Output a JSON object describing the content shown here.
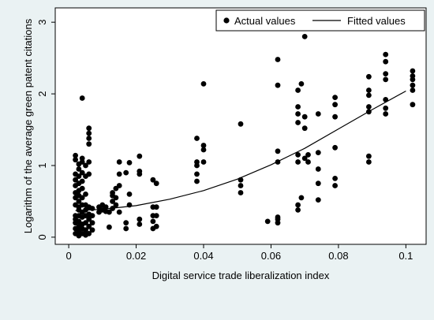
{
  "chart_data": {
    "type": "scatter",
    "title": "",
    "xlabel": "Digital service trade liberalization index",
    "ylabel": "Logarithm of the average green patent citations",
    "xlim": [
      -0.004,
      0.106
    ],
    "ylim": [
      -0.1,
      3.2
    ],
    "xticks": [
      "0",
      "0.02",
      "0.04",
      "0.06",
      "0.08",
      "0.1"
    ],
    "xtick_values": [
      0,
      0.02,
      0.04,
      0.06,
      0.08,
      0.1
    ],
    "yticks": [
      "0",
      "1",
      "2",
      "3"
    ],
    "ytick_values": [
      0,
      1,
      2,
      3
    ],
    "grid": false,
    "legend_position": "top-right",
    "series": [
      {
        "name": "Actual values",
        "kind": "scatter",
        "color": "#000000",
        "points": [
          [
            0.002,
            0.05
          ],
          [
            0.002,
            0.12
          ],
          [
            0.002,
            0.2
          ],
          [
            0.002,
            0.25
          ],
          [
            0.002,
            0.3
          ],
          [
            0.002,
            0.45
          ],
          [
            0.002,
            0.55
          ],
          [
            0.002,
            0.62
          ],
          [
            0.002,
            0.72
          ],
          [
            0.002,
            0.8
          ],
          [
            0.002,
            0.88
          ],
          [
            0.002,
            1.08
          ],
          [
            0.002,
            1.14
          ],
          [
            0.003,
            0.02
          ],
          [
            0.003,
            0.08
          ],
          [
            0.003,
            0.15
          ],
          [
            0.003,
            0.22
          ],
          [
            0.003,
            0.3
          ],
          [
            0.003,
            0.38
          ],
          [
            0.003,
            0.42
          ],
          [
            0.003,
            0.5
          ],
          [
            0.003,
            0.58
          ],
          [
            0.003,
            0.65
          ],
          [
            0.003,
            0.75
          ],
          [
            0.003,
            0.85
          ],
          [
            0.003,
            0.95
          ],
          [
            0.003,
            1.02
          ],
          [
            0.004,
            0.05
          ],
          [
            0.004,
            0.12
          ],
          [
            0.004,
            0.18
          ],
          [
            0.004,
            0.28
          ],
          [
            0.004,
            0.35
          ],
          [
            0.004,
            0.45
          ],
          [
            0.004,
            0.55
          ],
          [
            0.004,
            0.68
          ],
          [
            0.004,
            0.78
          ],
          [
            0.004,
            0.9
          ],
          [
            0.004,
            1.05
          ],
          [
            0.004,
            1.1
          ],
          [
            0.004,
            1.94
          ],
          [
            0.005,
            0.03
          ],
          [
            0.005,
            0.1
          ],
          [
            0.005,
            0.2
          ],
          [
            0.005,
            0.3
          ],
          [
            0.005,
            0.38
          ],
          [
            0.005,
            0.45
          ],
          [
            0.005,
            0.6
          ],
          [
            0.005,
            0.85
          ],
          [
            0.005,
            1.0
          ],
          [
            0.006,
            0.05
          ],
          [
            0.006,
            0.15
          ],
          [
            0.006,
            0.25
          ],
          [
            0.006,
            0.32
          ],
          [
            0.006,
            0.42
          ],
          [
            0.006,
            0.88
          ],
          [
            0.006,
            1.05
          ],
          [
            0.006,
            1.3
          ],
          [
            0.006,
            1.38
          ],
          [
            0.006,
            1.45
          ],
          [
            0.006,
            1.52
          ],
          [
            0.007,
            0.1
          ],
          [
            0.007,
            0.2
          ],
          [
            0.007,
            0.3
          ],
          [
            0.007,
            0.4
          ],
          [
            0.009,
            0.35
          ],
          [
            0.009,
            0.42
          ],
          [
            0.01,
            0.38
          ],
          [
            0.01,
            0.45
          ],
          [
            0.011,
            0.36
          ],
          [
            0.011,
            0.42
          ],
          [
            0.012,
            0.14
          ],
          [
            0.012,
            0.35
          ],
          [
            0.013,
            0.4
          ],
          [
            0.013,
            0.5
          ],
          [
            0.013,
            0.58
          ],
          [
            0.013,
            0.62
          ],
          [
            0.014,
            0.45
          ],
          [
            0.014,
            0.55
          ],
          [
            0.014,
            0.68
          ],
          [
            0.015,
            0.35
          ],
          [
            0.015,
            0.72
          ],
          [
            0.015,
            0.88
          ],
          [
            0.015,
            1.05
          ],
          [
            0.017,
            0.12
          ],
          [
            0.017,
            0.2
          ],
          [
            0.017,
            0.9
          ],
          [
            0.018,
            0.45
          ],
          [
            0.018,
            0.6
          ],
          [
            0.018,
            1.04
          ],
          [
            0.021,
            0.18
          ],
          [
            0.021,
            0.25
          ],
          [
            0.021,
            0.88
          ],
          [
            0.021,
            0.92
          ],
          [
            0.021,
            1.13
          ],
          [
            0.025,
            0.12
          ],
          [
            0.025,
            0.22
          ],
          [
            0.025,
            0.3
          ],
          [
            0.025,
            0.42
          ],
          [
            0.025,
            0.8
          ],
          [
            0.026,
            0.15
          ],
          [
            0.026,
            0.3
          ],
          [
            0.026,
            0.42
          ],
          [
            0.026,
            0.75
          ],
          [
            0.038,
            0.78
          ],
          [
            0.038,
            0.88
          ],
          [
            0.038,
            1.0
          ],
          [
            0.038,
            1.05
          ],
          [
            0.038,
            1.38
          ],
          [
            0.04,
            1.05
          ],
          [
            0.04,
            1.22
          ],
          [
            0.04,
            1.28
          ],
          [
            0.04,
            2.14
          ],
          [
            0.051,
            0.62
          ],
          [
            0.051,
            0.72
          ],
          [
            0.051,
            0.8
          ],
          [
            0.051,
            1.58
          ],
          [
            0.059,
            0.22
          ],
          [
            0.062,
            0.2
          ],
          [
            0.062,
            0.25
          ],
          [
            0.062,
            0.28
          ],
          [
            0.062,
            1.05
          ],
          [
            0.062,
            1.2
          ],
          [
            0.062,
            2.12
          ],
          [
            0.062,
            2.48
          ],
          [
            0.068,
            0.38
          ],
          [
            0.068,
            0.45
          ],
          [
            0.068,
            1.05
          ],
          [
            0.068,
            1.15
          ],
          [
            0.068,
            1.6
          ],
          [
            0.068,
            1.72
          ],
          [
            0.068,
            1.82
          ],
          [
            0.068,
            2.05
          ],
          [
            0.069,
            0.55
          ],
          [
            0.069,
            2.14
          ],
          [
            0.07,
            1.1
          ],
          [
            0.07,
            1.52
          ],
          [
            0.07,
            1.68
          ],
          [
            0.07,
            2.8
          ],
          [
            0.071,
            1.05
          ],
          [
            0.071,
            1.15
          ],
          [
            0.074,
            0.52
          ],
          [
            0.074,
            0.75
          ],
          [
            0.074,
            0.95
          ],
          [
            0.074,
            1.18
          ],
          [
            0.074,
            1.72
          ],
          [
            0.079,
            0.72
          ],
          [
            0.079,
            0.82
          ],
          [
            0.079,
            1.25
          ],
          [
            0.079,
            1.68
          ],
          [
            0.079,
            1.85
          ],
          [
            0.079,
            1.95
          ],
          [
            0.089,
            1.05
          ],
          [
            0.089,
            1.13
          ],
          [
            0.089,
            1.75
          ],
          [
            0.089,
            1.82
          ],
          [
            0.089,
            1.98
          ],
          [
            0.089,
            2.05
          ],
          [
            0.089,
            2.24
          ],
          [
            0.094,
            1.72
          ],
          [
            0.094,
            1.8
          ],
          [
            0.094,
            1.92
          ],
          [
            0.094,
            2.2
          ],
          [
            0.094,
            2.28
          ],
          [
            0.094,
            2.45
          ],
          [
            0.094,
            2.55
          ],
          [
            0.102,
            1.85
          ],
          [
            0.102,
            2.05
          ],
          [
            0.102,
            2.12
          ],
          [
            0.102,
            2.2
          ],
          [
            0.102,
            2.25
          ],
          [
            0.102,
            2.32
          ]
        ]
      },
      {
        "name": "Fitted values",
        "kind": "line",
        "color": "#000000",
        "points": [
          [
            0.002,
            0.37
          ],
          [
            0.01,
            0.39
          ],
          [
            0.02,
            0.44
          ],
          [
            0.03,
            0.53
          ],
          [
            0.04,
            0.65
          ],
          [
            0.05,
            0.81
          ],
          [
            0.06,
            1.01
          ],
          [
            0.07,
            1.24
          ],
          [
            0.08,
            1.51
          ],
          [
            0.09,
            1.78
          ],
          [
            0.1,
            2.04
          ]
        ]
      }
    ]
  }
}
